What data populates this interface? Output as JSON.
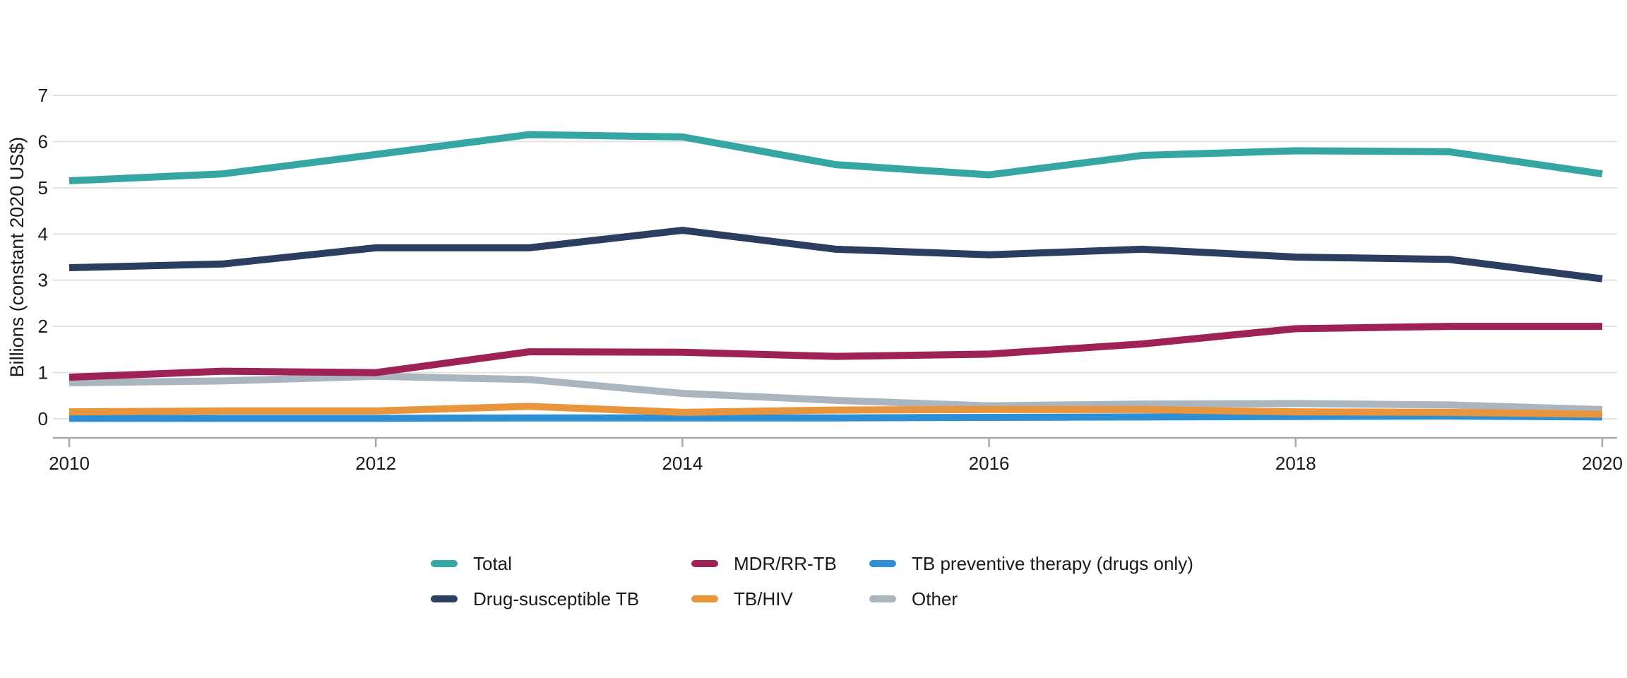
{
  "chart_data": {
    "type": "line",
    "title": "",
    "ylabel": "Billions (constant 2020 US$)",
    "xlabel": "",
    "ylim": [
      0,
      7
    ],
    "y_ticks": [
      0,
      1,
      2,
      3,
      4,
      5,
      6,
      7
    ],
    "x": [
      2010,
      2011,
      2012,
      2013,
      2014,
      2015,
      2016,
      2017,
      2018,
      2019,
      2020
    ],
    "x_tick_labels": [
      "2010",
      "2012",
      "2014",
      "2016",
      "2018",
      "2020"
    ],
    "grid": true,
    "legend_position": "bottom-center",
    "series": [
      {
        "name": "Total",
        "color": "#36A6A5",
        "values": [
          5.15,
          5.3,
          5.72,
          6.15,
          6.1,
          5.5,
          5.28,
          5.7,
          5.8,
          5.78,
          5.3
        ]
      },
      {
        "name": "Drug-susceptible TB",
        "color": "#2B3D61",
        "values": [
          3.27,
          3.35,
          3.7,
          3.7,
          4.08,
          3.67,
          3.55,
          3.67,
          3.5,
          3.45,
          3.03
        ]
      },
      {
        "name": "MDR/RR-TB",
        "color": "#9E2255",
        "values": [
          0.9,
          1.03,
          1.0,
          1.45,
          1.44,
          1.35,
          1.4,
          1.62,
          1.95,
          2.0,
          2.0
        ]
      },
      {
        "name": "TB/HIV",
        "color": "#E9953E",
        "values": [
          0.15,
          0.17,
          0.17,
          0.27,
          0.14,
          0.19,
          0.2,
          0.2,
          0.15,
          0.14,
          0.1
        ]
      },
      {
        "name": "TB preventive therapy (drugs only)",
        "color": "#2E8FD4",
        "values": [
          0.01,
          0.01,
          0.01,
          0.02,
          0.02,
          0.02,
          0.03,
          0.04,
          0.05,
          0.06,
          0.04
        ]
      },
      {
        "name": "Other",
        "color": "#ABB5C0",
        "values": [
          0.78,
          0.82,
          0.92,
          0.85,
          0.55,
          0.4,
          0.28,
          0.32,
          0.33,
          0.3,
          0.2
        ]
      }
    ],
    "legend_order": [
      "Total",
      "MDR/RR-TB",
      "TB preventive therapy (drugs only)",
      "Drug-susceptible TB",
      "TB/HIV",
      "Other"
    ],
    "draw_order": [
      "Other",
      "TB preventive therapy (drugs only)",
      "TB/HIV",
      "MDR/RR-TB",
      "Drug-susceptible TB",
      "Total"
    ],
    "style": {
      "gridline_color": "#E3E3E3",
      "axis_line_color": "#A9A9A9",
      "tick_color": "#A9A9A9",
      "text_color": "#1a1a1a"
    }
  }
}
